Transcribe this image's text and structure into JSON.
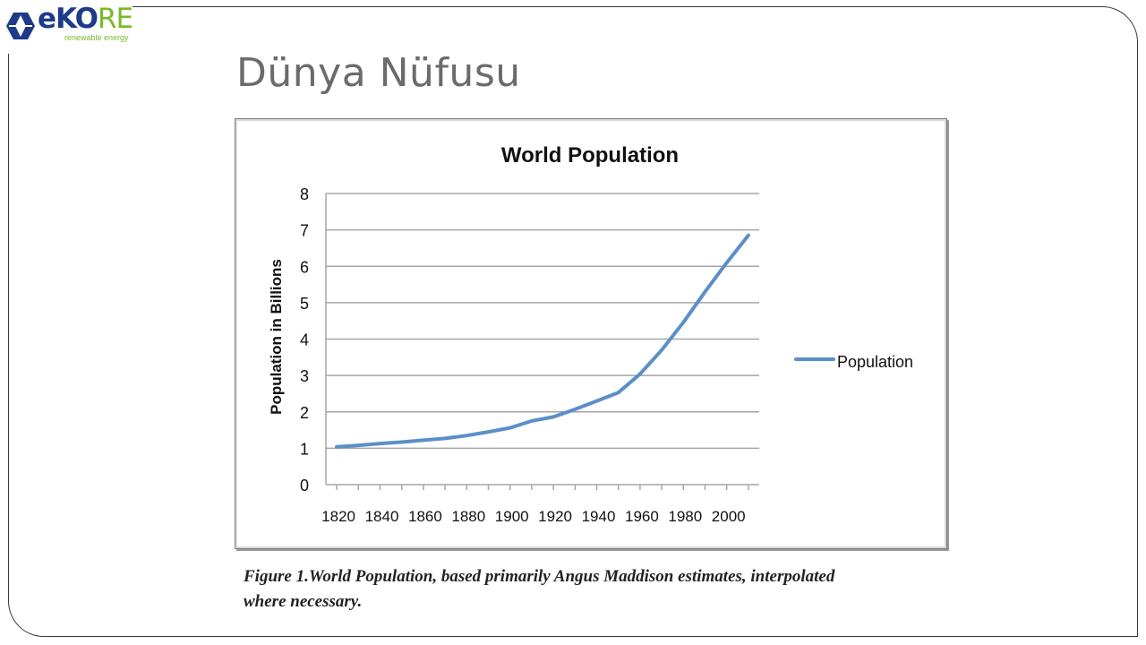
{
  "logo": {
    "word_main": "eKO",
    "word_accent": "RE",
    "tagline": "renewable energy"
  },
  "page": {
    "title": "Dünya Nüfusu",
    "caption": "Figure 1.World Population, based primarily Angus Maddison estimates, interpolated where necessary."
  },
  "colors": {
    "line": "#5b8fc7",
    "grid": "#a6a6a6",
    "logo_blue": "#1e3a8a",
    "logo_green": "#7ab929"
  },
  "chart_data": {
    "type": "line",
    "title": "World Population",
    "ylabel": "Population in Billions",
    "xlabel": "",
    "ylim": [
      0,
      8
    ],
    "xlim": [
      1815,
      2015
    ],
    "y_ticks": [
      "0",
      "1",
      "2",
      "3",
      "4",
      "5",
      "6",
      "7",
      "8"
    ],
    "x_tick_labels": [
      "1820",
      "1840",
      "1860",
      "1880",
      "1900",
      "1920",
      "1940",
      "1960",
      "1980",
      "2000"
    ],
    "legend": "right",
    "grid": true,
    "series": [
      {
        "name": "Population",
        "x": [
          1820,
          1830,
          1840,
          1850,
          1860,
          1870,
          1880,
          1890,
          1900,
          1910,
          1920,
          1930,
          1940,
          1950,
          1960,
          1970,
          1980,
          1990,
          2000,
          2010
        ],
        "values": [
          1.04,
          1.08,
          1.13,
          1.17,
          1.22,
          1.27,
          1.35,
          1.45,
          1.56,
          1.75,
          1.86,
          2.07,
          2.3,
          2.53,
          3.04,
          3.7,
          4.46,
          5.3,
          6.1,
          6.85
        ]
      }
    ]
  }
}
